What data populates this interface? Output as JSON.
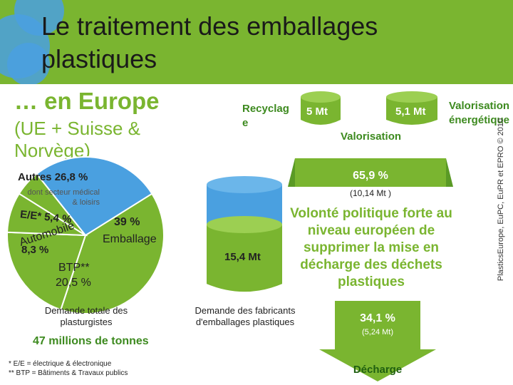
{
  "slide": {
    "title": "Le traitement des emballages plastiques",
    "subtitle_bold": "… en Europe",
    "subtitle": "(UE + Suisse & Norvège)",
    "side_credit": "PlasticsEurope, EuPC, EuPR et EPRO © 2010",
    "message": "Volonté politique forte au niveau européen de supprimer la mise en décharge des déchets plastiques",
    "footnote1": "* E/E = électrique & électronique",
    "footnote2": "** BTP = Bâtiments & Travaux publics",
    "colors": {
      "green": "#7ab530",
      "blue": "#4aa0e0",
      "dark_green": "#3d8a1f"
    }
  },
  "chart_data": [
    {
      "type": "pie",
      "title": "Demande totale des plasturgistes",
      "total_label": "47 millions de tonnes",
      "slices": [
        {
          "name": "Emballage",
          "value": 39,
          "label": "39 %"
        },
        {
          "name": "BTP**",
          "value": 20.5,
          "label": "20,5 %"
        },
        {
          "name": "Automobile",
          "value": 8.3,
          "label": "8,3 %"
        },
        {
          "name": "E/E*",
          "value": 5.4,
          "label": "5,4 %"
        },
        {
          "name": "Autres",
          "value": 26.8,
          "label": "26,8 %",
          "note": "dont secteur médical & loisirs"
        }
      ]
    },
    {
      "type": "bar",
      "title": "Demande des fabricants d'emballages plastiques",
      "categories": [
        "Demande des fabricants d'emballages plastiques"
      ],
      "values": [
        15.4
      ],
      "value_label": "15,4 Mt"
    },
    {
      "type": "flow",
      "categories": [
        "Recyclage",
        "Valorisation énergétique",
        "Décharge"
      ],
      "recovery": {
        "label": "Valorisation",
        "pct": "65,9 %",
        "amount": "(10,14 Mt )"
      },
      "recyclage": {
        "label": "Recyclage",
        "value": 5,
        "value_label": "5 Mt"
      },
      "energetique": {
        "label": "Valorisation énergétique",
        "value": 5.1,
        "value_label": "5,1 Mt"
      },
      "decharge": {
        "label": "Décharge",
        "pct": "34,1 %",
        "amount": "(5,24 Mt)"
      }
    }
  ]
}
